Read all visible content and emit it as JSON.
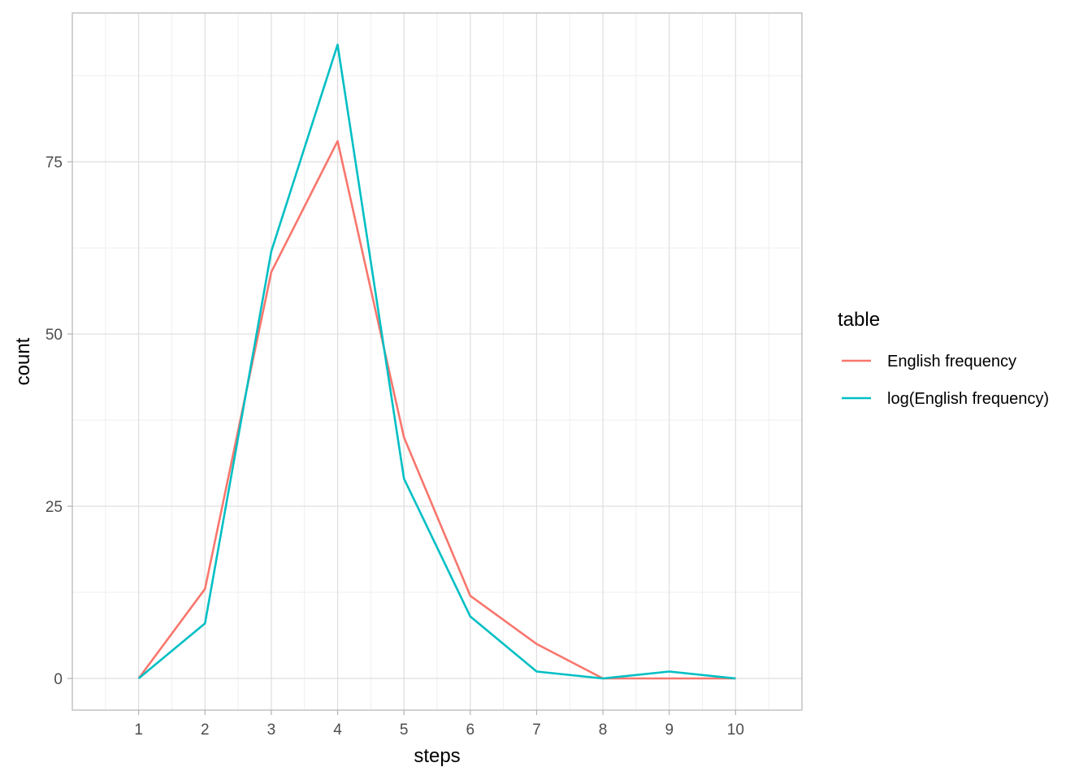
{
  "chart_data": {
    "type": "line",
    "xlabel": "steps",
    "ylabel": "count",
    "x_ticks": [
      "1",
      "2",
      "3",
      "4",
      "5",
      "6",
      "7",
      "8",
      "9",
      "10"
    ],
    "y_ticks": [
      "0",
      "25",
      "50",
      "75"
    ],
    "xlim": [
      0.0,
      11.0
    ],
    "ylim": [
      -4.6,
      96.6
    ],
    "grid": true,
    "legend_title": "table",
    "legend_position": "right",
    "series": [
      {
        "name": "English frequency",
        "color": "#F8766D",
        "x": [
          1,
          2,
          3,
          4,
          5,
          6,
          7,
          8,
          9,
          10
        ],
        "y": [
          0,
          13,
          59,
          78,
          35,
          12,
          5,
          0,
          0,
          0
        ]
      },
      {
        "name": "log(English frequency)",
        "color": "#00BFC4",
        "x": [
          1,
          2,
          3,
          4,
          5,
          6,
          7,
          8,
          9,
          10
        ],
        "y": [
          0,
          8,
          62,
          92,
          29,
          9,
          1,
          0,
          1,
          0
        ]
      }
    ]
  }
}
